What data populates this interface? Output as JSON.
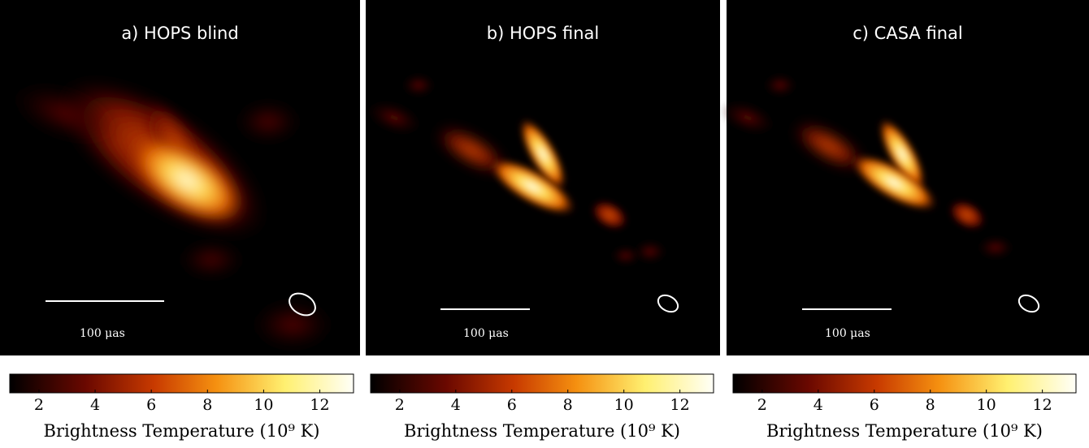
{
  "panels": [
    {
      "title": "a) HOPS blind",
      "scale_label": "100 μas",
      "colorbar": {
        "lim": [
          0.96,
          13.2
        ],
        "ticks": [
          2,
          4,
          6,
          8,
          10,
          12
        ],
        "label": "Brightness Temperature (10⁹ K)"
      }
    },
    {
      "title": "b) HOPS final",
      "scale_label": "100 μas",
      "colorbar": {
        "lim": [
          0.96,
          13.2
        ],
        "ticks": [
          2,
          4,
          6,
          8,
          10,
          12
        ],
        "label": "Brightness Temperature (10⁹ K)"
      }
    },
    {
      "title": "c) CASA final",
      "scale_label": "100 μas",
      "colorbar": {
        "lim": [
          0.96,
          13.2
        ],
        "ticks": [
          2,
          4,
          6,
          8,
          10,
          12
        ],
        "label": "Brightness Temperature (10⁹ K)"
      }
    }
  ]
}
